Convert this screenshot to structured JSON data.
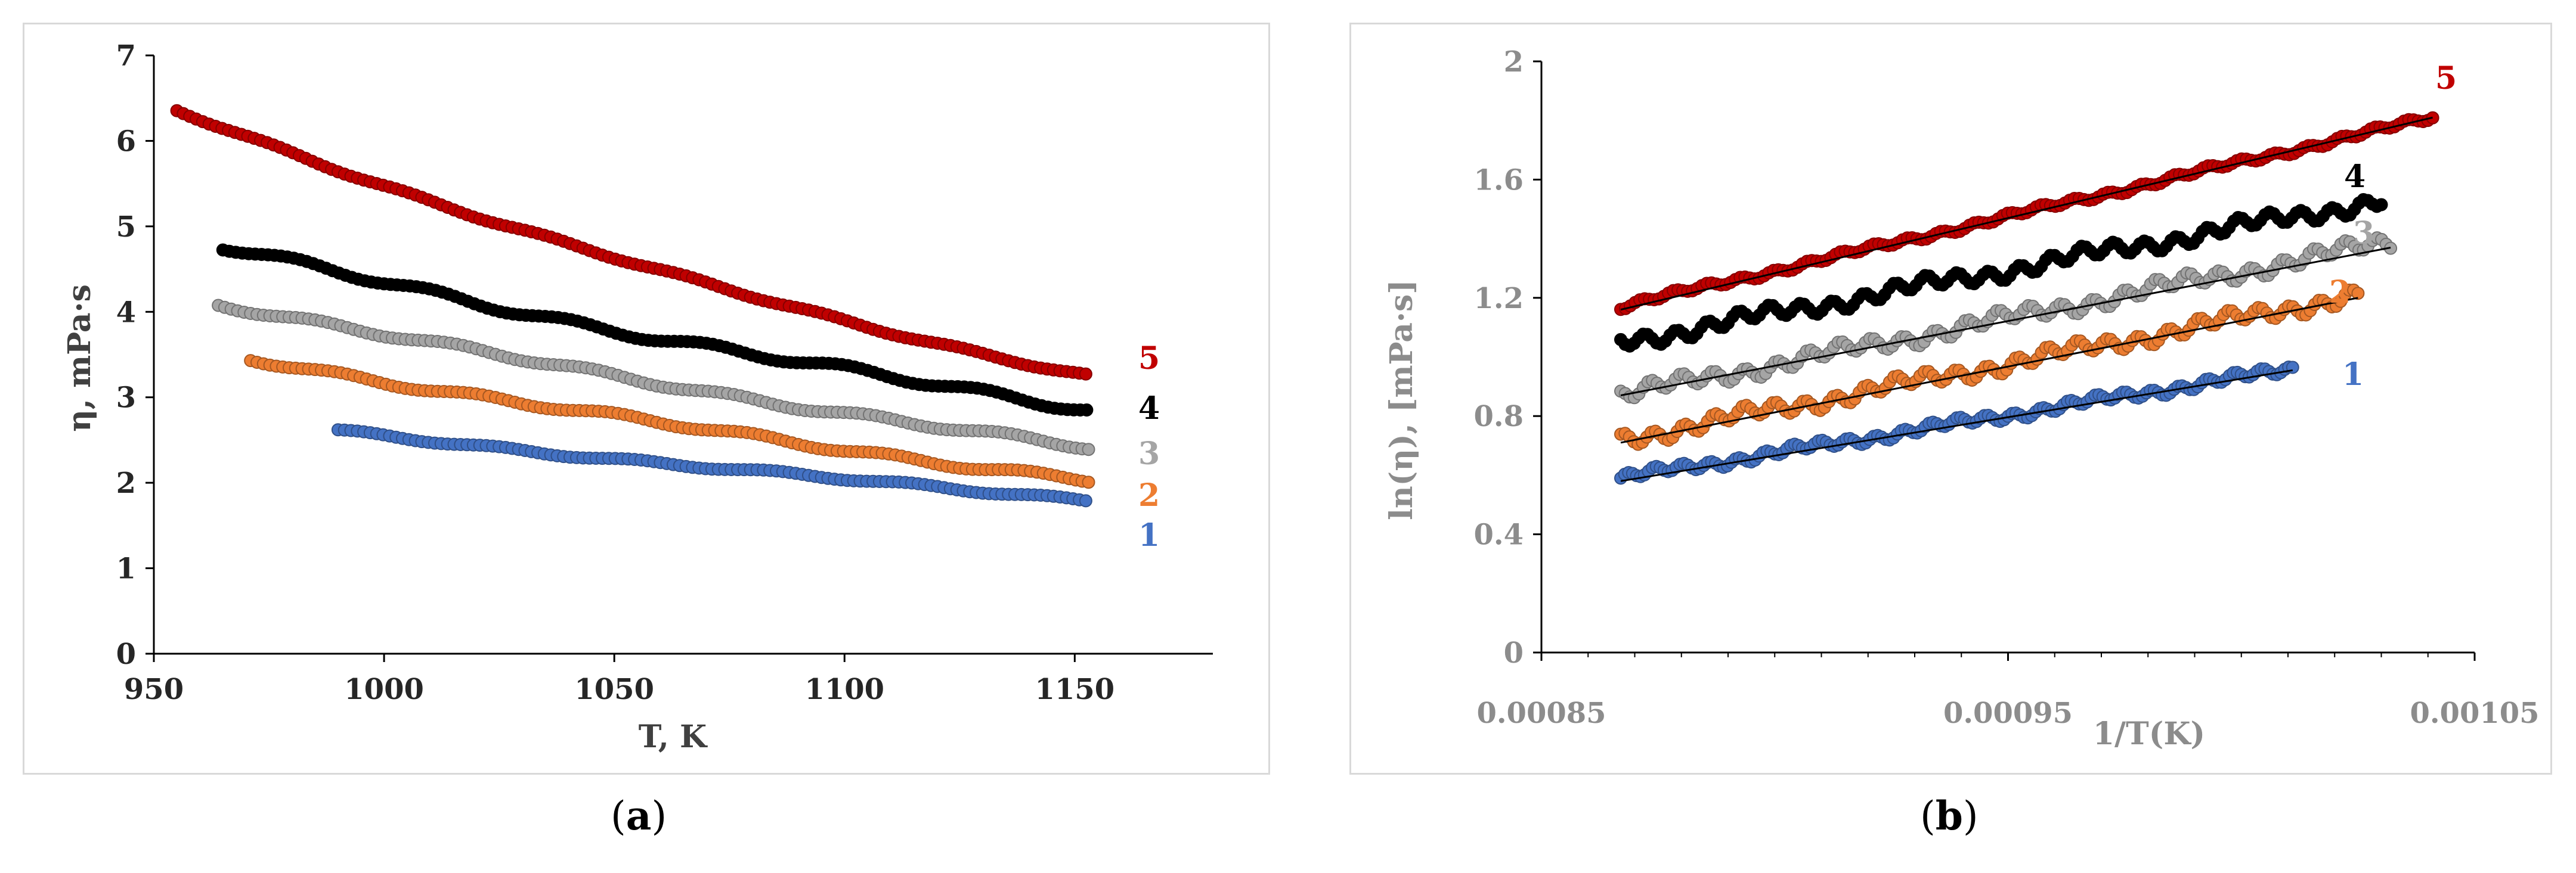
{
  "captions": {
    "a": "a",
    "b": "b"
  },
  "chart_data": [
    {
      "type": "scatter",
      "panel": "a",
      "title": "",
      "xlabel": "T, K",
      "ylabel": "η, mPa·s",
      "xlim": [
        950,
        1180
      ],
      "ylim": [
        0,
        7
      ],
      "xticks": [
        950,
        1000,
        1050,
        1100,
        1150
      ],
      "yticks": [
        0,
        1,
        2,
        3,
        4,
        5,
        6,
        7
      ],
      "grid": false,
      "series": [
        {
          "name": "1",
          "color": "#4472c4",
          "x_range": [
            990,
            1153
          ],
          "y_start": 2.6,
          "y_end": 1.8,
          "curv": 0.25,
          "wobble": 0.02
        },
        {
          "name": "2",
          "color": "#ed7d31",
          "x_range": [
            971,
            1153
          ],
          "y_start": 3.45,
          "y_end": 2.03,
          "curv": 0.35,
          "wobble": 0.03
        },
        {
          "name": "3",
          "color": "#a5a5a5",
          "x_range": [
            964,
            1153
          ],
          "y_start": 4.1,
          "y_end": 2.4,
          "curv": 0.35,
          "wobble": 0.03
        },
        {
          "name": "4",
          "color": "#000000",
          "x_range": [
            965,
            1153
          ],
          "y_start": 4.75,
          "y_end": 2.87,
          "curv": 0.45,
          "wobble": 0.04
        },
        {
          "name": "5",
          "color": "#c00000",
          "x_range": [
            955,
            1153
          ],
          "y_start": 6.35,
          "y_end": 3.25,
          "curv": 0.6,
          "wobble": 0.02
        }
      ],
      "label_colors": {
        "1": "#4472c4",
        "2": "#ed7d31",
        "3": "#a5a5a5",
        "4": "#000000",
        "5": "#c00000"
      }
    },
    {
      "type": "scatter",
      "panel": "b",
      "title": "",
      "xlabel": "1/T(K)",
      "ylabel": "ln(η), [mPa·s]",
      "xlim": [
        0.00085,
        0.00105
      ],
      "ylim": [
        0,
        2
      ],
      "xticks": [
        "0.00085",
        "0.00095",
        "0.00105"
      ],
      "yticks": [
        "0",
        "0.4",
        "0.8",
        "1.2",
        "1.6",
        "2"
      ],
      "grid": false,
      "series": [
        {
          "name": "1",
          "color": "#4472c4",
          "x_range": [
            0.000867,
            0.001011
          ],
          "y_start": 0.59,
          "y_end": 0.96,
          "wobble": 0.012,
          "fit": [
            0.58,
            0.955
          ]
        },
        {
          "name": "2",
          "color": "#ed7d31",
          "x_range": [
            0.000867,
            0.001025
          ],
          "y_start": 0.72,
          "y_end": 1.21,
          "wobble": 0.02,
          "fit": [
            0.71,
            1.2
          ]
        },
        {
          "name": "3",
          "color": "#a5a5a5",
          "x_range": [
            0.000867,
            0.001032
          ],
          "y_start": 0.87,
          "y_end": 1.39,
          "wobble": 0.02,
          "fit": [
            0.87,
            1.37
          ]
        },
        {
          "name": "4",
          "color": "#000000",
          "x_range": [
            0.000867,
            0.00103
          ],
          "y_start": 1.05,
          "y_end": 1.53,
          "wobble": 0.02
        },
        {
          "name": "5",
          "color": "#c00000",
          "x_range": [
            0.000867,
            0.001041
          ],
          "y_start": 1.17,
          "y_end": 1.81,
          "wobble": 0.008,
          "fit": [
            1.16,
            1.81
          ]
        }
      ],
      "label_colors": {
        "1": "#4472c4",
        "2": "#ed7d31",
        "3": "#a5a5a5",
        "4": "#000000",
        "5": "#c00000"
      }
    }
  ]
}
